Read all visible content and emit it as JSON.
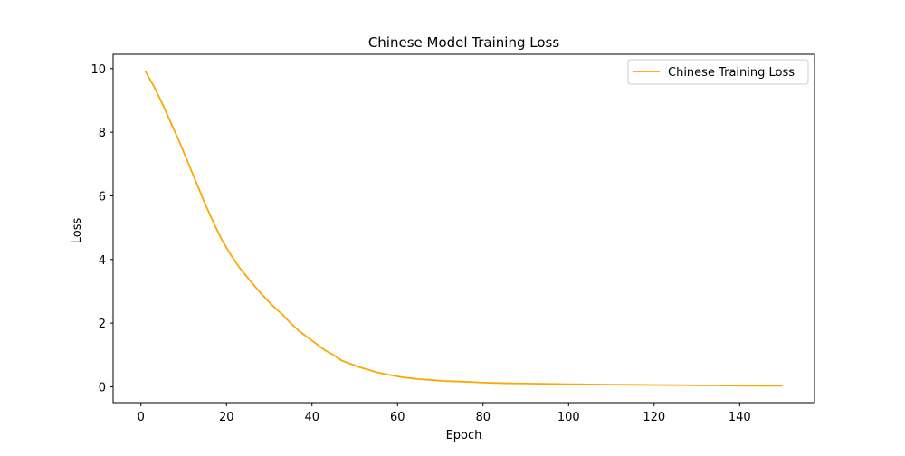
{
  "chart_data": {
    "type": "line",
    "title": "Chinese Model Training Loss",
    "xlabel": "Epoch",
    "ylabel": "Loss",
    "xlim": [
      -6.5,
      157.5
    ],
    "ylim": [
      -0.5,
      10.45
    ],
    "xticks": [
      0,
      20,
      40,
      60,
      80,
      100,
      120,
      140
    ],
    "yticks": [
      0,
      2,
      4,
      6,
      8,
      10
    ],
    "grid": false,
    "legend": {
      "placement": "top-right"
    },
    "series": [
      {
        "name": "Chinese Training Loss",
        "color": "#ffa500",
        "x": [
          1,
          3,
          5,
          7,
          9,
          11,
          13,
          15,
          17,
          19,
          21,
          23,
          25,
          27,
          29,
          31,
          33,
          35,
          37,
          39,
          41,
          43,
          45,
          47,
          49,
          51,
          53,
          55,
          57,
          59,
          61,
          63,
          65,
          67,
          69,
          71,
          73,
          75,
          77,
          80,
          85,
          90,
          95,
          100,
          105,
          110,
          115,
          120,
          125,
          130,
          135,
          140,
          145,
          150
        ],
        "values": [
          9.93,
          9.45,
          8.9,
          8.3,
          7.7,
          7.05,
          6.4,
          5.75,
          5.15,
          4.6,
          4.15,
          3.75,
          3.42,
          3.1,
          2.8,
          2.52,
          2.28,
          2.0,
          1.75,
          1.55,
          1.35,
          1.15,
          1.0,
          0.82,
          0.72,
          0.62,
          0.54,
          0.46,
          0.4,
          0.35,
          0.3,
          0.27,
          0.24,
          0.22,
          0.2,
          0.18,
          0.17,
          0.16,
          0.15,
          0.13,
          0.11,
          0.1,
          0.09,
          0.08,
          0.07,
          0.065,
          0.06,
          0.055,
          0.05,
          0.045,
          0.04,
          0.035,
          0.03,
          0.03
        ]
      }
    ]
  }
}
